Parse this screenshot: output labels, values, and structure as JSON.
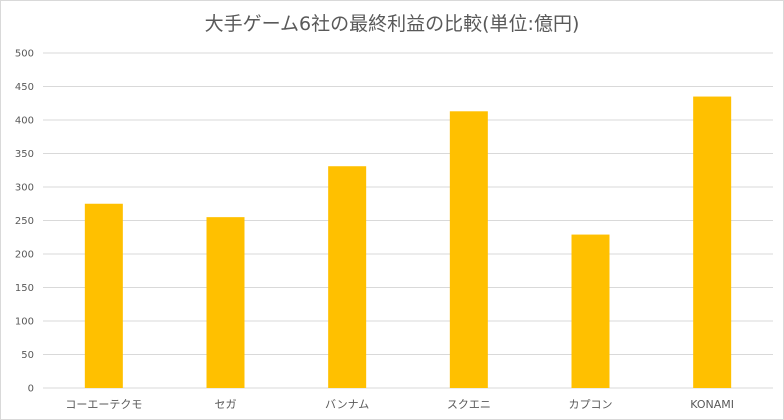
{
  "chart_data": {
    "type": "bar",
    "title": "大手ゲーム6社の最終利益の比較(単位:億円)",
    "categories": [
      "コーエーテクモ",
      "セガ",
      "バンナム",
      "スクエニ",
      "カプコン",
      "KONAMI"
    ],
    "values": [
      275,
      255,
      331,
      413,
      229,
      435
    ],
    "xlabel": "",
    "ylabel": "",
    "ylim": [
      0,
      500
    ],
    "yticks": [
      0,
      50,
      100,
      150,
      200,
      250,
      300,
      350,
      400,
      450,
      500
    ],
    "grid": true,
    "legend": "none",
    "bar_color": "#FFC000",
    "grid_color": "#d9d9d9",
    "text_color": "#595959"
  }
}
